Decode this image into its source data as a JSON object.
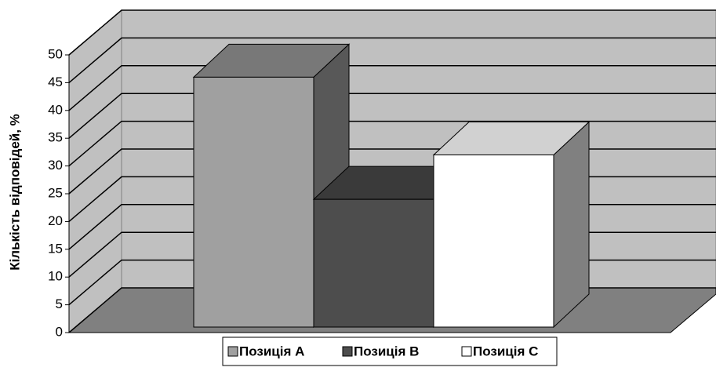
{
  "chart_data": {
    "type": "bar3d",
    "y_label": "Кількість відповідей, %",
    "categories": [
      null
    ],
    "series": [
      {
        "name": "Позиція А",
        "color": "#a0a0a0",
        "values": [
          45
        ]
      },
      {
        "name": "Позиція В",
        "color": "#4d4d4d",
        "values": [
          23
        ]
      },
      {
        "name": "Позиція С",
        "color": "#ffffff",
        "values": [
          31
        ]
      }
    ],
    "ylim": [
      0,
      50
    ],
    "yticks": [
      0,
      5,
      10,
      15,
      20,
      25,
      30,
      35,
      40,
      45,
      50
    ],
    "grid": true,
    "legend": "bottom"
  }
}
